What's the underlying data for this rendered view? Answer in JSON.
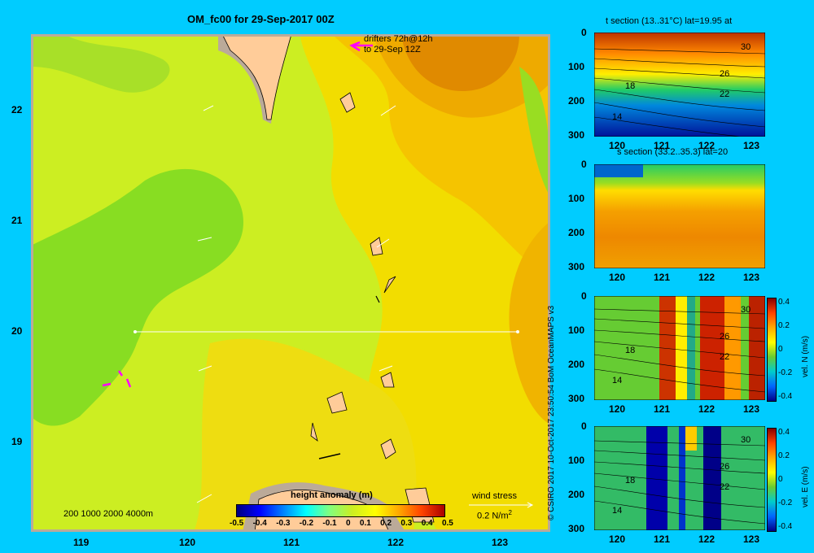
{
  "title": "OM_fc00 for 29-Sep-2017 00Z",
  "main_map": {
    "lat_ticks": [
      "22",
      "21",
      "20",
      "19"
    ],
    "lon_ticks": [
      "119",
      "120",
      "121",
      "122",
      "123"
    ],
    "drifters_line1": "drifters 72h@12h",
    "drifters_line2": "to 29-Sep 12Z",
    "bathy_legend": "200  1000  2000  4000m",
    "colorbar_title": "height anomaly (m)",
    "colorbar_ticks": [
      "-0.5",
      "-0.4",
      "-0.3",
      "-0.2",
      "-0.1",
      "0",
      "0.1",
      "0.2",
      "0.3",
      "0.4",
      "0.5"
    ],
    "wind_label": "wind stress",
    "wind_scale": "0.2 N/m",
    "wind_scale_sup": "2"
  },
  "credit": "© CSIRO 2017   10-Oct-2017 23:50:54 BoM OceanMAPS v3",
  "panels": [
    {
      "title": "t section (13..31°C) lat=19.95 at",
      "y_ticks": [
        "0",
        "100",
        "200",
        "300"
      ],
      "x_ticks": [
        "120",
        "121",
        "122",
        "123"
      ],
      "contour_labels": [
        "30",
        "26",
        "22",
        "18",
        "14"
      ]
    },
    {
      "title": "s section (33.2..35.3) lat=20",
      "y_ticks": [
        "0",
        "100",
        "200",
        "300"
      ],
      "x_ticks": [
        "120",
        "121",
        "122",
        "123"
      ]
    },
    {
      "title": "",
      "y_ticks": [
        "0",
        "100",
        "200",
        "300"
      ],
      "x_ticks": [
        "120",
        "121",
        "122",
        "123"
      ],
      "contour_labels": [
        "30",
        "26",
        "22",
        "18",
        "14"
      ],
      "cbar_ticks": [
        "0.4",
        "0.2",
        "0",
        "-0.2",
        "-0.4"
      ],
      "cbar_label": "vel. N (m/s)"
    },
    {
      "title": "",
      "y_ticks": [
        "0",
        "100",
        "200",
        "300"
      ],
      "x_ticks": [
        "120",
        "121",
        "122",
        "123"
      ],
      "contour_labels": [
        "30",
        "26",
        "22",
        "18",
        "14"
      ],
      "cbar_ticks": [
        "0.4",
        "0.2",
        "0",
        "-0.2",
        "-0.4"
      ],
      "cbar_label": "vel. E (m/s)"
    }
  ],
  "colors": {
    "background": "#00ccff",
    "land": "#ffcc99",
    "shelf": "#bbaa99",
    "drifters": "#ff00ff",
    "wind_arrows": "#ffffff"
  }
}
